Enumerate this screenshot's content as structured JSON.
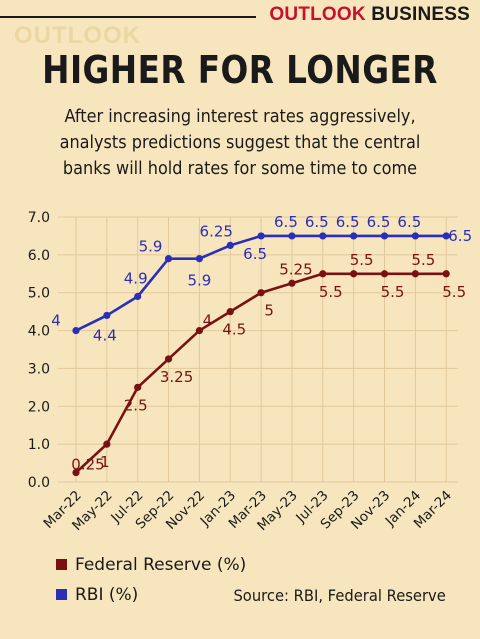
{
  "header": {
    "brand_primary": "OUTLOOK",
    "brand_secondary": "BUSINESS",
    "watermark": "OUTLOOK"
  },
  "title": "HIGHER FOR LONGER",
  "subtitle": "After increasing interest rates aggressively, analysts predictions suggest that the central banks will hold rates for some time to come",
  "legend": [
    {
      "label": "Federal Reserve (%)",
      "color": "#7a1111"
    },
    {
      "label": "RBI (%)",
      "color": "#2b2fb5"
    }
  ],
  "source": "Source: RBI, Federal Reserve",
  "chart_data": {
    "type": "line",
    "categories": [
      "Mar-22",
      "May-22",
      "Jul-22",
      "Sep-22",
      "Nov-22",
      "Jan-23",
      "Mar-23",
      "May-23",
      "Jul-23",
      "Sep-23",
      "Nov-23",
      "Jan-24",
      "Mar-24"
    ],
    "ylim": [
      0,
      7
    ],
    "yticks": [
      "0.0",
      "1.0",
      "2.0",
      "3.0",
      "4.0",
      "5.0",
      "6.0",
      "7.0"
    ],
    "grid": true,
    "legend_position": "bottom-left",
    "series": [
      {
        "name": "Federal Reserve (%)",
        "color": "#7a1111",
        "values": [
          0.25,
          1,
          2.5,
          3.25,
          4,
          4.5,
          5,
          5.25,
          5.5,
          5.5,
          5.5,
          5.5,
          5.5
        ],
        "labels": [
          "0.25",
          "1",
          "2.5",
          "3.25",
          "4",
          "4.5",
          "5",
          "5.25",
          "5.5",
          "5.5",
          "5.5",
          "5.5",
          "5.5"
        ]
      },
      {
        "name": "RBI (%)",
        "color": "#2b2fb5",
        "values": [
          4,
          4.4,
          4.9,
          5.9,
          5.9,
          6.25,
          6.5,
          6.5,
          6.5,
          6.5,
          6.5,
          6.5,
          6.5
        ],
        "labels": [
          "4",
          "4.4",
          "4.9",
          "5.9",
          "5.9",
          "6.25",
          "6.5",
          "6.5",
          "6.5",
          "6.5",
          "6.5",
          "6.5",
          "6.5"
        ]
      }
    ]
  }
}
